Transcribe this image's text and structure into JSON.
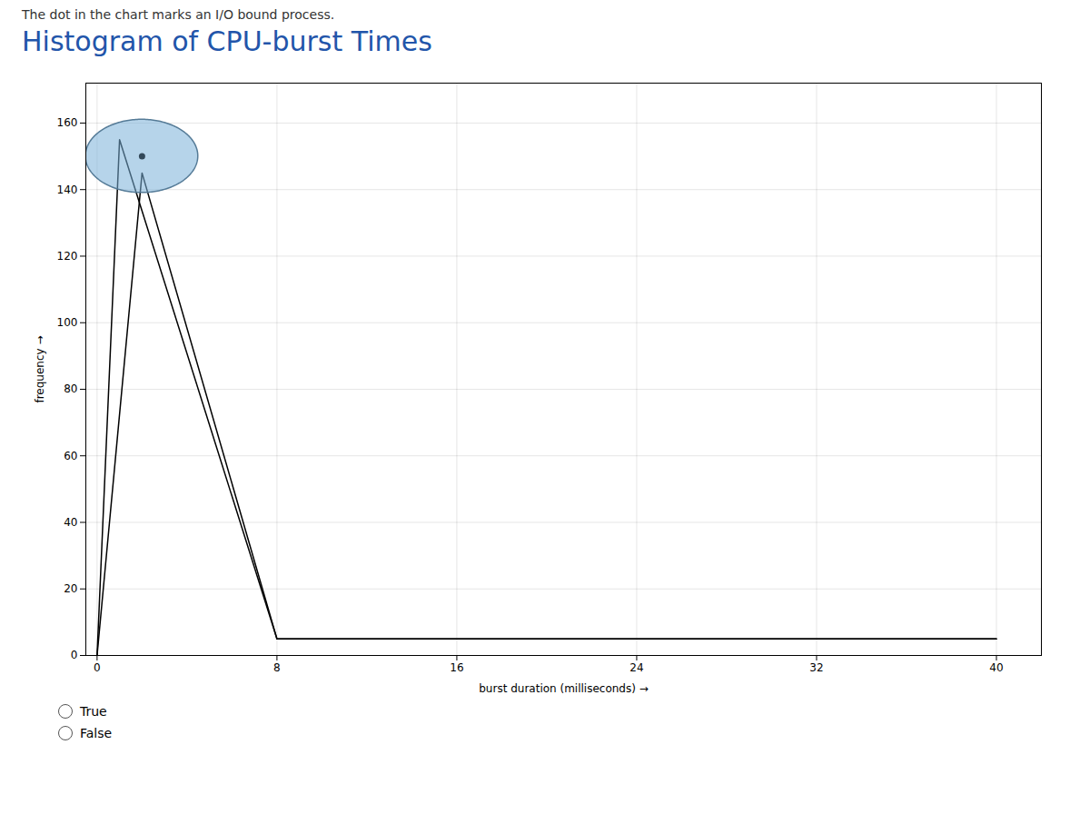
{
  "chart_data": {
    "type": "line",
    "title": "Histogram of CPU-burst Times",
    "subtitle": "The dot in the chart marks an I/O bound process.",
    "xlabel": "burst duration (milliseconds)",
    "ylabel": "frequency",
    "xlim": [
      -0.5,
      42
    ],
    "xticks": [
      0,
      8,
      16,
      24,
      32,
      40
    ],
    "ylim": [
      0,
      172
    ],
    "yticks": [
      0,
      20,
      40,
      60,
      80,
      100,
      120,
      140,
      160
    ],
    "grid": true,
    "series": [
      {
        "x": [
          0,
          1,
          8,
          40
        ],
        "values": [
          0,
          155,
          5,
          5
        ],
        "color": "#000000"
      },
      {
        "x": [
          0,
          2,
          8,
          40
        ],
        "values": [
          0,
          145,
          5,
          5
        ],
        "color": "#000000"
      },
      {
        "type": "scatter",
        "x": [
          2.0
        ],
        "values": [
          150
        ],
        "color": "#7ab0d8",
        "widths": [
          5.0
        ],
        "heights": [
          22
        ]
      }
    ],
    "annotations": [
      "True",
      "False"
    ]
  }
}
